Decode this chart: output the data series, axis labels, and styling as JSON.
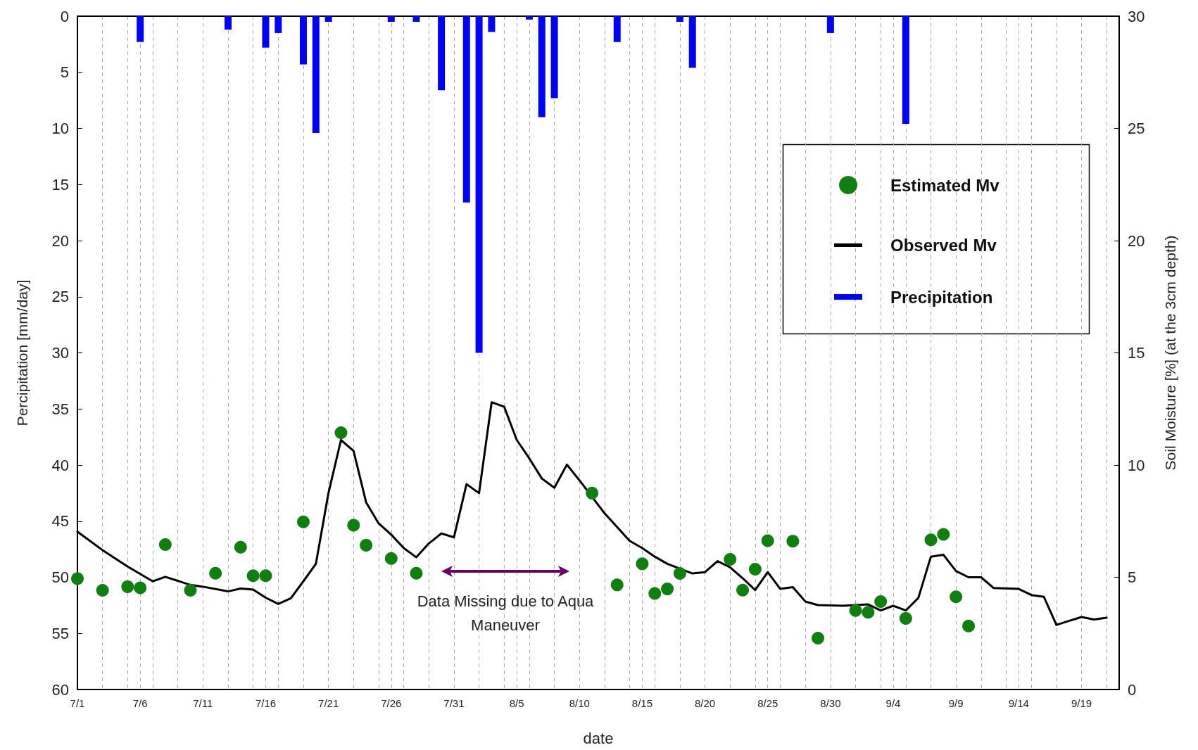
{
  "chart_data": {
    "type": "line",
    "xlabel": "date",
    "ylabel": "Percipitation [mm/day]",
    "y2label": "Soil Moisture [%] (at the 3cm depth)",
    "xlim": [
      "--07-01",
      "--09-22"
    ],
    "xticks": [
      {
        "value": "--07-01",
        "label": "7/1"
      },
      {
        "value": "--07-03",
        "label": null
      },
      {
        "value": "--07-05",
        "label": null
      },
      {
        "value": "--07-06",
        "label": "7/6"
      },
      {
        "value": "--07-07",
        "label": null
      },
      {
        "value": "--07-09",
        "label": null
      },
      {
        "value": "--07-11",
        "label": "7/11"
      },
      {
        "value": "--07-13",
        "label": null
      },
      {
        "value": "--07-15",
        "label": null
      },
      {
        "value": "--07-16",
        "label": "7/16"
      },
      {
        "value": "--07-17",
        "label": null
      },
      {
        "value": "--07-19",
        "label": null
      },
      {
        "value": "--07-21",
        "label": "7/21"
      },
      {
        "value": "--07-23",
        "label": null
      },
      {
        "value": "--07-25",
        "label": null
      },
      {
        "value": "--07-26",
        "label": "7/26"
      },
      {
        "value": "--07-27",
        "label": null
      },
      {
        "value": "--07-29",
        "label": null
      },
      {
        "value": "--07-31",
        "label": "7/31"
      },
      {
        "value": "--08-02",
        "label": null
      },
      {
        "value": "--08-04",
        "label": null
      },
      {
        "value": "--08-05",
        "label": "8/5"
      },
      {
        "value": "--08-06",
        "label": null
      },
      {
        "value": "--08-08",
        "label": null
      },
      {
        "value": "--08-10",
        "label": "8/10"
      },
      {
        "value": "--08-12",
        "label": null
      },
      {
        "value": "--08-14",
        "label": null
      },
      {
        "value": "--08-15",
        "label": "8/15"
      },
      {
        "value": "--08-16",
        "label": null
      },
      {
        "value": "--08-18",
        "label": null
      },
      {
        "value": "--08-20",
        "label": "8/20"
      },
      {
        "value": "--08-22",
        "label": null
      },
      {
        "value": "--08-24",
        "label": null
      },
      {
        "value": "--08-25",
        "label": "8/25"
      },
      {
        "value": "--08-26",
        "label": null
      },
      {
        "value": "--08-28",
        "label": null
      },
      {
        "value": "--08-30",
        "label": "8/30"
      },
      {
        "value": "--09-01",
        "label": null
      },
      {
        "value": "--09-03",
        "label": null
      },
      {
        "value": "--09-04",
        "label": "9/4"
      },
      {
        "value": "--09-05",
        "label": null
      },
      {
        "value": "--09-07",
        "label": null
      },
      {
        "value": "--09-09",
        "label": "9/9"
      },
      {
        "value": "--09-11",
        "label": null
      },
      {
        "value": "--09-13",
        "label": null
      },
      {
        "value": "--09-14",
        "label": "9/14"
      },
      {
        "value": "--09-15",
        "label": null
      },
      {
        "value": "--09-17",
        "label": null
      },
      {
        "value": "--09-19",
        "label": "9/19"
      },
      {
        "value": "--09-21",
        "label": null
      }
    ],
    "ylim": [
      60,
      0
    ],
    "yticks": [
      0,
      5,
      10,
      15,
      20,
      25,
      30,
      35,
      40,
      45,
      50,
      55,
      60
    ],
    "y2lim": [
      0,
      30
    ],
    "y2ticks": [
      0,
      5,
      10,
      15,
      20,
      25,
      30
    ],
    "grid": "x",
    "legend": "top right",
    "line_style": "solid",
    "series": [
      {
        "type": "scatter",
        "name": "Estimated Mv",
        "color": "#0f7f0f",
        "axis": "y2",
        "marker": "circle",
        "x": [
          "--07-01",
          "--07-03",
          "--07-05",
          "--07-06",
          "--07-08",
          "--07-10",
          "--07-12",
          "--07-14",
          "--07-15",
          "--07-16",
          "--07-19",
          "--07-22",
          "--07-23",
          "--07-24",
          "--07-26",
          "--07-28",
          "--08-11",
          "--08-13",
          "--08-15",
          "--08-16",
          "--08-17",
          "--08-18",
          "--08-22",
          "--08-23",
          "--08-24",
          "--08-25",
          "--08-27",
          "--08-29",
          "--09-01",
          "--09-02",
          "--09-03",
          "--09-05",
          "--09-07",
          "--09-08",
          "--09-09",
          "--09-10"
        ],
        "values": [
          4.94,
          4.42,
          4.58,
          4.53,
          6.46,
          4.42,
          5.18,
          6.34,
          5.07,
          5.07,
          7.47,
          11.44,
          7.32,
          6.43,
          5.84,
          5.18,
          8.75,
          4.66,
          5.6,
          4.28,
          4.48,
          5.17,
          5.8,
          4.43,
          5.36,
          6.63,
          6.61,
          2.29,
          3.52,
          3.44,
          3.92,
          3.17,
          6.67,
          6.91,
          4.13,
          2.83
        ]
      },
      {
        "name": "Observed Mv",
        "color": "#000000",
        "axis": "y2",
        "marker": "none",
        "x": [
          "--07-01",
          "--07-03",
          "--07-05",
          "--07-07",
          "--07-08",
          "--07-10",
          "--07-11",
          "--07-13",
          "--07-14",
          "--07-15",
          "--07-16",
          "--07-17",
          "--07-18",
          "--07-19",
          "--07-20",
          "--07-21",
          "--07-22",
          "--07-23",
          "--07-24",
          "--07-25",
          "--07-26",
          "--07-27",
          "--07-28",
          "--07-29",
          "--07-30",
          "--07-31",
          "--08-01",
          "--08-02",
          "--08-03",
          "--08-04",
          "--08-05",
          "--08-06",
          "--08-07",
          "--08-08",
          "--08-09",
          "--08-10",
          "--08-12",
          "--08-14",
          "--08-15",
          "--08-16",
          "--08-17",
          "--08-19",
          "--08-20",
          "--08-21",
          "--08-22",
          "--08-23",
          "--08-24",
          "--08-25",
          "--08-26",
          "--08-27",
          "--08-28",
          "--08-29",
          "--08-31",
          "--09-02",
          "--09-03",
          "--09-04",
          "--09-05",
          "--09-06",
          "--09-07",
          "--09-08",
          "--09-09",
          "--09-10",
          "--09-11",
          "--09-12",
          "--09-14",
          "--09-15",
          "--09-16",
          "--09-17",
          "--09-19",
          "--09-20",
          "--09-21"
        ],
        "values": [
          7.03,
          6.21,
          5.48,
          4.82,
          5.02,
          4.66,
          4.58,
          4.37,
          4.5,
          4.45,
          4.09,
          3.81,
          4.06,
          4.82,
          5.6,
          8.75,
          11.12,
          10.63,
          8.34,
          7.4,
          6.9,
          6.3,
          5.89,
          6.51,
          6.95,
          6.78,
          9.15,
          8.75,
          12.8,
          12.6,
          11.12,
          10.3,
          9.4,
          8.99,
          10.02,
          9.32,
          7.85,
          6.62,
          6.3,
          5.92,
          5.6,
          5.17,
          5.23,
          5.72,
          5.44,
          4.96,
          4.43,
          5.23,
          4.48,
          4.56,
          3.92,
          3.76,
          3.73,
          3.79,
          3.52,
          3.73,
          3.52,
          4.08,
          5.92,
          6.0,
          5.28,
          5.0,
          5.0,
          4.52,
          4.48,
          4.21,
          4.13,
          2.88,
          3.23,
          3.12,
          3.2
        ]
      },
      {
        "type": "bar",
        "name": "Precipitation",
        "color": "#0000ff",
        "x": [
          "--07-06",
          "--07-13",
          "--07-16",
          "--07-17",
          "--07-19",
          "--07-20",
          "--07-21",
          "--07-26",
          "--07-28",
          "--07-30",
          "--08-01",
          "--08-02",
          "--08-03",
          "--08-06",
          "--08-07",
          "--08-08",
          "--08-13",
          "--08-18",
          "--08-19",
          "--08-30",
          "--09-05"
        ],
        "values": [
          2.3,
          1.2,
          2.8,
          1.5,
          4.3,
          10.4,
          0.5,
          0.5,
          0.5,
          6.6,
          16.6,
          30,
          1.4,
          0.3,
          9,
          7.3,
          2.3,
          0.5,
          4.6,
          1.5,
          9.6
        ]
      }
    ],
    "annotations": [
      "Data Missing due to Aqua Maneuver"
    ]
  }
}
